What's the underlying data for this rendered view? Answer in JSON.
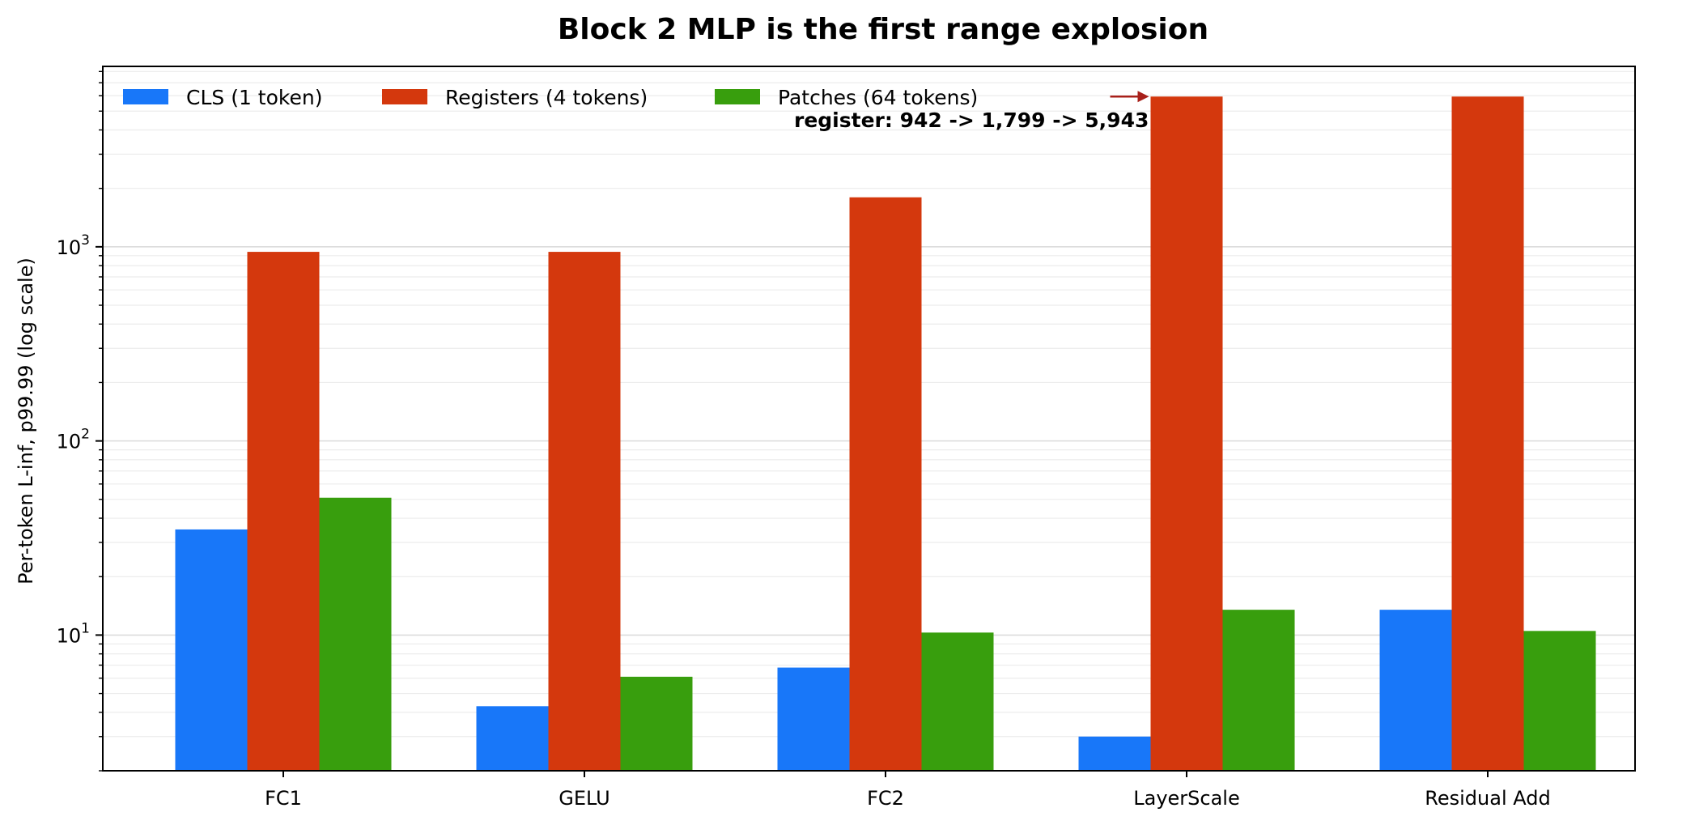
{
  "chart_data": {
    "type": "bar",
    "title": "Block 2 MLP is the first range explosion",
    "xlabel": "",
    "ylabel": "Per-token L-inf, p99.99 (log scale)",
    "y_scale": "log",
    "ylim": [
      2,
      8500
    ],
    "y_tick_labels": [
      {
        "value": 10,
        "base": "10",
        "exp": "1"
      },
      {
        "value": 100,
        "base": "10",
        "exp": "2"
      },
      {
        "value": 1000,
        "base": "10",
        "exp": "3"
      }
    ],
    "grid": true,
    "legend_placement": "top-left",
    "categories": [
      "FC1",
      "GELU",
      "FC2",
      "LayerScale",
      "Residual Add"
    ],
    "series": [
      {
        "name": "CLS (1 token)",
        "color": "#1877F9",
        "values": [
          35,
          4.3,
          6.8,
          3.0,
          13.5
        ]
      },
      {
        "name": "Registers (4 tokens)",
        "color": "#D4380D",
        "values": [
          942,
          942,
          1799,
          5943,
          5943
        ]
      },
      {
        "name": "Patches (64 tokens)",
        "color": "#389E0D",
        "values": [
          51,
          6.1,
          10.3,
          13.5,
          10.5
        ]
      }
    ],
    "annotation": {
      "text": "register: 942 -> 1,799 -> 5,943",
      "color": "#A8201A",
      "anchor_category": "LayerScale",
      "anchor_value": 5943
    }
  }
}
